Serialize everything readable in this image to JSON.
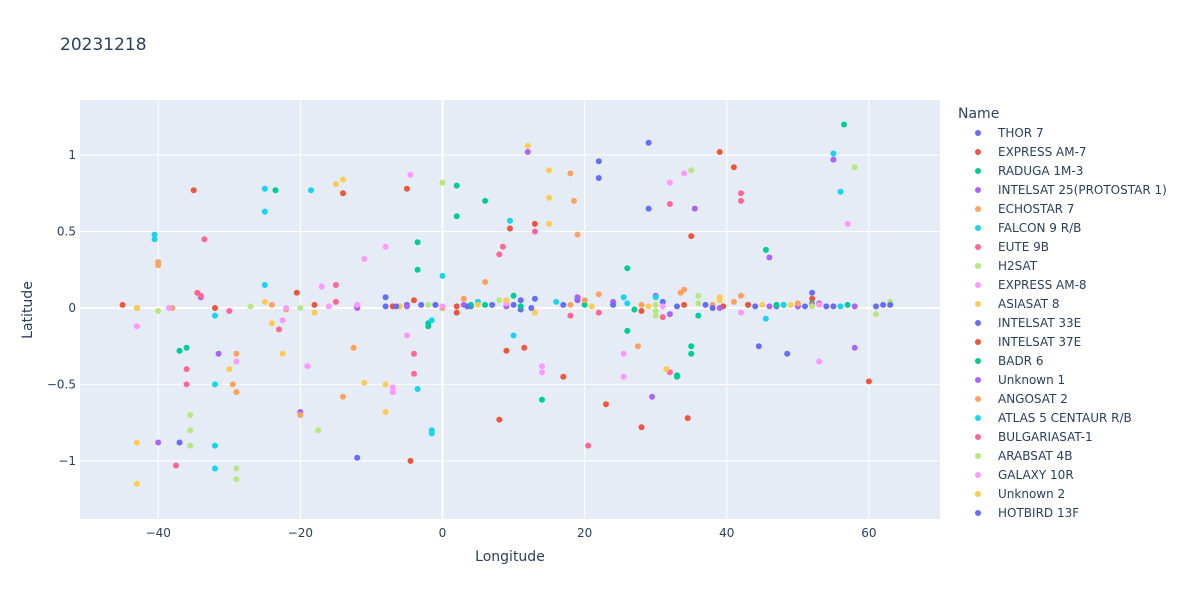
{
  "chart_data": {
    "type": "scatter",
    "title": "20231218",
    "xlabel": "Longitude",
    "ylabel": "Latitude",
    "xlim": [
      -51,
      70
    ],
    "ylim": [
      -1.38,
      1.36
    ],
    "x_ticks": [
      -40,
      -20,
      0,
      20,
      40,
      60
    ],
    "y_ticks": [
      -1,
      -0.5,
      0,
      0.5,
      1
    ],
    "x_tick_labels": [
      "−40",
      "−20",
      "0",
      "20",
      "40",
      "60"
    ],
    "y_tick_labels": [
      "−1",
      "−0.5",
      "0",
      "0.5",
      "1"
    ],
    "grid": true,
    "plot_background": "#e5ecf6",
    "legend_title": "Name",
    "legend_position": "right",
    "series": [
      {
        "name": "THOR 7",
        "color": "#636efa",
        "points": [
          [
            -37,
            -0.88
          ],
          [
            -12,
            -0.98
          ],
          [
            -8,
            0.07
          ],
          [
            -3,
            0.02
          ],
          [
            11,
            0.05
          ],
          [
            22,
            0.96
          ],
          [
            22,
            0.85
          ],
          [
            29,
            1.08
          ],
          [
            29,
            0.65
          ],
          [
            44.5,
            -0.25
          ],
          [
            48.5,
            -0.3
          ],
          [
            52,
            0.1
          ],
          [
            61,
            0.01
          ]
        ]
      },
      {
        "name": "EXPRESS AM-7",
        "color": "#ef553b",
        "points": [
          [
            -45,
            0.02
          ],
          [
            -35,
            0.77
          ],
          [
            -20.5,
            0.1
          ],
          [
            -14,
            0.75
          ],
          [
            -5,
            0.78
          ],
          [
            -4.5,
            -1.0
          ],
          [
            -4,
            0.05
          ],
          [
            2,
            0.01
          ],
          [
            8,
            -0.73
          ],
          [
            9.5,
            0.52
          ],
          [
            13,
            0.55
          ],
          [
            17,
            -0.45
          ],
          [
            28,
            -0.78
          ],
          [
            34.5,
            -0.72
          ],
          [
            35,
            0.47
          ],
          [
            39,
            1.02
          ],
          [
            41,
            0.92
          ],
          [
            60,
            -0.48
          ]
        ]
      },
      {
        "name": "RADUGA 1M-3",
        "color": "#00cc96",
        "points": [
          [
            -37,
            -0.28
          ],
          [
            -23.5,
            0.77
          ],
          [
            -3.5,
            0.25
          ],
          [
            -3.5,
            0.43
          ],
          [
            -2,
            -0.12
          ],
          [
            2,
            0.8
          ],
          [
            2,
            0.6
          ],
          [
            6,
            0.7
          ],
          [
            10,
            0.08
          ],
          [
            14,
            -0.6
          ],
          [
            26,
            0.26
          ],
          [
            26,
            -0.15
          ],
          [
            33,
            -0.45
          ],
          [
            35,
            -0.25
          ],
          [
            45.5,
            0.38
          ],
          [
            56.5,
            1.2
          ]
        ]
      },
      {
        "name": "INTELSAT 25(PROTOSTAR 1)",
        "color": "#ab63fa",
        "points": [
          [
            -40,
            -0.88
          ],
          [
            -31.5,
            -0.3
          ],
          [
            -20,
            -0.68
          ],
          [
            -12,
            0.01
          ],
          [
            3,
            0.02
          ],
          [
            12,
            1.02
          ],
          [
            19,
            0.05
          ],
          [
            29.5,
            -0.58
          ],
          [
            35.5,
            0.65
          ],
          [
            46,
            0.33
          ],
          [
            55,
            0.97
          ],
          [
            58,
            -0.26
          ]
        ]
      },
      {
        "name": "ECHOSTAR 7",
        "color": "#ffa15a",
        "points": [
          [
            -40,
            0.3
          ],
          [
            -29,
            -0.3
          ],
          [
            -29,
            -0.55
          ],
          [
            -24,
            0.02
          ],
          [
            -20,
            -0.7
          ],
          [
            -12.5,
            -0.26
          ],
          [
            3,
            0.06
          ],
          [
            6,
            0.17
          ],
          [
            18,
            0.88
          ],
          [
            18.5,
            0.7
          ],
          [
            19,
            0.48
          ],
          [
            27.5,
            -0.25
          ],
          [
            33.5,
            0.1
          ],
          [
            38,
            0.02
          ],
          [
            41,
            0.04
          ]
        ]
      },
      {
        "name": "FALCON 9 R/B",
        "color": "#19d3f3",
        "points": [
          [
            -40.5,
            0.48
          ],
          [
            -32,
            -1.05
          ],
          [
            -25,
            0.78
          ],
          [
            -25,
            0.63
          ],
          [
            -18.5,
            0.77
          ],
          [
            -3.5,
            -0.53
          ],
          [
            -1.5,
            -0.82
          ],
          [
            0,
            0.21
          ],
          [
            9.5,
            0.57
          ],
          [
            10,
            -0.18
          ],
          [
            25.5,
            0.07
          ],
          [
            45.5,
            -0.07
          ],
          [
            55,
            1.01
          ],
          [
            56,
            0.76
          ]
        ]
      },
      {
        "name": "EUTE 9B",
        "color": "#ff6692",
        "points": [
          [
            -37.5,
            -1.03
          ],
          [
            -36,
            -0.5
          ],
          [
            -33.5,
            0.45
          ],
          [
            -34.5,
            0.1
          ],
          [
            -23,
            -0.14
          ],
          [
            -15,
            0.15
          ],
          [
            -4,
            -0.43
          ],
          [
            8.5,
            0.4
          ],
          [
            18,
            -0.05
          ],
          [
            20.5,
            -0.9
          ],
          [
            32,
            -0.42
          ],
          [
            32,
            0.68
          ],
          [
            42,
            0.75
          ]
        ]
      },
      {
        "name": "H2SAT",
        "color": "#b6e880",
        "points": [
          [
            -40,
            -0.02
          ],
          [
            -35.5,
            -0.8
          ],
          [
            -29,
            -1.12
          ],
          [
            -17.5,
            -0.8
          ],
          [
            0,
            0.82
          ],
          [
            30,
            -0.05
          ],
          [
            30,
            0.02
          ],
          [
            35,
            0.9
          ],
          [
            36,
            0.08
          ],
          [
            58,
            0.92
          ],
          [
            61,
            -0.04
          ],
          [
            63,
            0.04
          ]
        ]
      },
      {
        "name": "EXPRESS AM-8",
        "color": "#ff97ff",
        "points": [
          [
            -43,
            -0.12
          ],
          [
            -29,
            -0.35
          ],
          [
            -22.5,
            -0.08
          ],
          [
            -19,
            -0.38
          ],
          [
            -17,
            0.14
          ],
          [
            -11,
            0.32
          ],
          [
            -8,
            0.4
          ],
          [
            -7,
            -0.52
          ],
          [
            -4.5,
            0.87
          ],
          [
            14,
            -0.42
          ],
          [
            25.5,
            -0.3
          ],
          [
            25.5,
            -0.45
          ],
          [
            32,
            0.82
          ],
          [
            34,
            0.88
          ],
          [
            53,
            -0.35
          ],
          [
            57,
            0.55
          ]
        ]
      },
      {
        "name": "ASIASAT 8",
        "color": "#fecb52",
        "points": [
          [
            -43,
            -0.88
          ],
          [
            -43,
            -1.15
          ],
          [
            -25,
            0.04
          ],
          [
            -22.5,
            -0.3
          ],
          [
            -15,
            0.81
          ],
          [
            -8,
            -0.68
          ],
          [
            -8,
            -0.5
          ],
          [
            -11,
            -0.49
          ],
          [
            12,
            1.06
          ],
          [
            15,
            0.72
          ],
          [
            15,
            0.9
          ],
          [
            15,
            0.55
          ],
          [
            31.5,
            -0.4
          ],
          [
            39,
            0.05
          ]
        ]
      },
      {
        "name": "INTELSAT 33E",
        "color": "#636efa",
        "points": [
          [
            -8,
            0.01
          ],
          [
            -5,
            0.02
          ],
          [
            4,
            0.01
          ],
          [
            11,
            -0.01
          ],
          [
            13,
            0.06
          ],
          [
            19,
            0.06
          ],
          [
            31,
            0.04
          ],
          [
            37,
            0.02
          ],
          [
            43,
            0.02
          ],
          [
            47,
            0.01
          ],
          [
            50,
            0.01
          ],
          [
            54,
            0.01
          ],
          [
            62,
            0.02
          ]
        ]
      },
      {
        "name": "INTELSAT 37E",
        "color": "#ef553b",
        "points": [
          [
            -43,
            0.0
          ],
          [
            -32,
            0.0
          ],
          [
            -18,
            0.02
          ],
          [
            -12,
            0.01
          ],
          [
            -7,
            0.01
          ],
          [
            2,
            -0.03
          ],
          [
            9,
            -0.28
          ],
          [
            11.5,
            -0.26
          ],
          [
            23,
            -0.63
          ],
          [
            28,
            -0.02
          ],
          [
            34,
            0.02
          ],
          [
            39.5,
            0.01
          ],
          [
            43,
            0.02
          ],
          [
            48,
            0.02
          ],
          [
            52,
            0.06
          ]
        ]
      },
      {
        "name": "BADR 6",
        "color": "#00cc96",
        "points": [
          [
            -36,
            -0.26
          ],
          [
            -2,
            -0.1
          ],
          [
            4,
            0.02
          ],
          [
            6,
            0.02
          ],
          [
            11,
            0.01
          ],
          [
            20,
            0.02
          ],
          [
            27,
            -0.01
          ],
          [
            33,
            -0.44
          ],
          [
            35,
            -0.3
          ],
          [
            36,
            -0.05
          ],
          [
            47,
            0.02
          ],
          [
            52,
            0.03
          ],
          [
            57,
            0.02
          ]
        ]
      },
      {
        "name": "Unknown 1",
        "color": "#ab63fa",
        "points": [
          [
            -34,
            0.07
          ],
          [
            -12,
            0.0
          ],
          [
            -5,
            0.01
          ],
          [
            9,
            0.01
          ],
          [
            19,
            0.07
          ],
          [
            24,
            0.04
          ],
          [
            30,
            0.08
          ],
          [
            32,
            -0.04
          ],
          [
            39,
            0.0
          ],
          [
            46,
            0.01
          ],
          [
            50,
            0.01
          ],
          [
            53,
            0.03
          ],
          [
            58,
            0.01
          ]
        ]
      },
      {
        "name": "ANGOSAT 2",
        "color": "#ffa15a",
        "points": [
          [
            -40,
            0.28
          ],
          [
            -38,
            0.0
          ],
          [
            -29.5,
            -0.5
          ],
          [
            -22,
            -0.01
          ],
          [
            -14,
            -0.58
          ],
          [
            0,
            0.0
          ],
          [
            3,
            0.06
          ],
          [
            9,
            0.04
          ],
          [
            18,
            0.02
          ],
          [
            20,
            0.05
          ],
          [
            22,
            0.09
          ],
          [
            28,
            0.02
          ],
          [
            34,
            0.12
          ],
          [
            42,
            0.08
          ],
          [
            50,
            0.03
          ]
        ]
      },
      {
        "name": "ATLAS 5 CENTAUR R/B",
        "color": "#19d3f3",
        "points": [
          [
            -40.5,
            0.45
          ],
          [
            -32,
            -0.05
          ],
          [
            -32,
            -0.5
          ],
          [
            -32,
            -0.9
          ],
          [
            -25,
            0.15
          ],
          [
            -1.5,
            -0.08
          ],
          [
            -1.5,
            -0.8
          ],
          [
            5,
            0.04
          ],
          [
            16,
            0.04
          ],
          [
            26,
            0.03
          ],
          [
            30,
            0.07
          ],
          [
            48,
            0.02
          ],
          [
            56,
            0.01
          ]
        ]
      },
      {
        "name": "BULGARIASAT-1",
        "color": "#ff6692",
        "points": [
          [
            -36,
            -0.4
          ],
          [
            -34,
            0.08
          ],
          [
            -30,
            -0.02
          ],
          [
            -15,
            0.04
          ],
          [
            -4,
            -0.3
          ],
          [
            -1,
            0.02
          ],
          [
            8,
            0.35
          ],
          [
            13,
            0.5
          ],
          [
            22,
            -0.03
          ],
          [
            31,
            -0.06
          ],
          [
            42,
            0.7
          ],
          [
            52,
            0.02
          ]
        ]
      },
      {
        "name": "ARABSAT 4B",
        "color": "#b6e880",
        "points": [
          [
            -35.5,
            -0.7
          ],
          [
            -35.5,
            -0.9
          ],
          [
            -29,
            -1.05
          ],
          [
            -27,
            0.01
          ],
          [
            -20,
            0.0
          ],
          [
            -2,
            0.02
          ],
          [
            8,
            0.05
          ],
          [
            30,
            -0.02
          ],
          [
            36,
            0.03
          ],
          [
            52,
            0.01
          ]
        ]
      },
      {
        "name": "GALAXY 10R",
        "color": "#ff97ff",
        "points": [
          [
            -38.5,
            0.0
          ],
          [
            -22,
            0.0
          ],
          [
            -16,
            0.01
          ],
          [
            -12,
            0.02
          ],
          [
            -7,
            -0.55
          ],
          [
            -5,
            -0.18
          ],
          [
            0,
            0.01
          ],
          [
            9,
            0.03
          ],
          [
            14,
            -0.38
          ],
          [
            31,
            0.01
          ],
          [
            38,
            0.0
          ],
          [
            42,
            -0.03
          ],
          [
            53,
            0.02
          ]
        ]
      },
      {
        "name": "Unknown 2",
        "color": "#fecb52",
        "points": [
          [
            -43,
            0.0
          ],
          [
            -30,
            -0.4
          ],
          [
            -24,
            -0.1
          ],
          [
            -18,
            -0.03
          ],
          [
            -14,
            0.84
          ],
          [
            -6,
            0.01
          ],
          [
            5,
            0.02
          ],
          [
            9,
            0.05
          ],
          [
            13,
            -0.03
          ],
          [
            21,
            0.01
          ],
          [
            29,
            0.01
          ],
          [
            39,
            0.07
          ],
          [
            45,
            0.02
          ],
          [
            49,
            0.02
          ]
        ]
      },
      {
        "name": "HOTBIRD 13F",
        "color": "#636efa",
        "points": [
          [
            -6.5,
            0.01
          ],
          [
            -1,
            0.02
          ],
          [
            3.5,
            0.01
          ],
          [
            7,
            0.02
          ],
          [
            10,
            0.02
          ],
          [
            12.5,
            0.0
          ],
          [
            17,
            0.02
          ],
          [
            24,
            0.02
          ],
          [
            33,
            0.01
          ],
          [
            38,
            0.0
          ],
          [
            44,
            0.01
          ],
          [
            51,
            0.01
          ],
          [
            55,
            0.01
          ],
          [
            63,
            0.02
          ]
        ]
      }
    ]
  }
}
